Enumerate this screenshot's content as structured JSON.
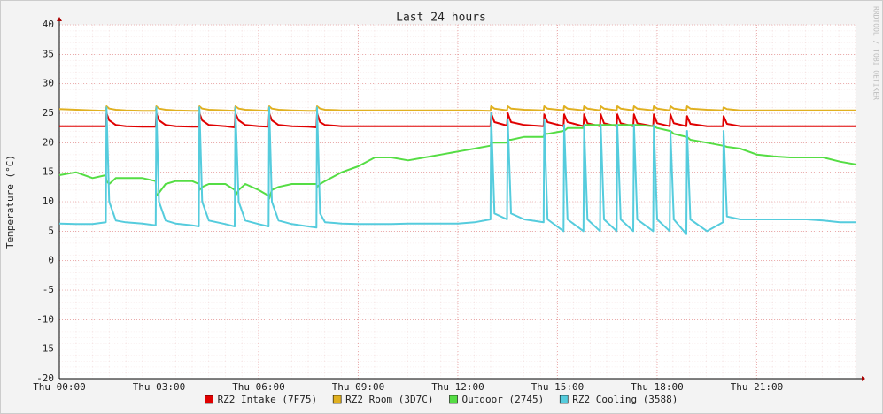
{
  "chart_data": {
    "type": "line",
    "title": "Last 24 hours",
    "y_label": "Temperature (°C)",
    "watermark": "RRDTOOL / TOBI OETIKER",
    "x": [
      0,
      0.5,
      1,
      1.4,
      1.42,
      1.5,
      1.7,
      2,
      2.5,
      2.9,
      2.92,
      3.0,
      3.2,
      3.5,
      4,
      4.2,
      4.22,
      4.3,
      4.5,
      5,
      5.28,
      5.3,
      5.4,
      5.6,
      6,
      6.3,
      6.32,
      6.4,
      6.6,
      7,
      7.5,
      7.74,
      7.76,
      7.85,
      8,
      8.5,
      9,
      9.5,
      10,
      10.5,
      11,
      11.5,
      12,
      12.5,
      12.98,
      13.0,
      13.1,
      13.48,
      13.5,
      13.6,
      14,
      14.58,
      14.6,
      14.7,
      15.18,
      15.2,
      15.3,
      15.78,
      15.8,
      15.9,
      16.28,
      16.3,
      16.4,
      16.78,
      16.8,
      16.9,
      17.28,
      17.3,
      17.4,
      17.88,
      17.9,
      18.0,
      18.38,
      18.4,
      18.5,
      18.88,
      18.9,
      19.0,
      19.5,
      19.98,
      20.0,
      20.1,
      20.5,
      21,
      21.5,
      22,
      22.5,
      23,
      23.5,
      24
    ],
    "series": [
      {
        "name": "RZ2 Intake (7F75)",
        "color": "#e00000",
        "values": [
          22.8,
          22.8,
          22.8,
          22.8,
          25,
          23.8,
          23,
          22.8,
          22.7,
          22.7,
          25,
          23.8,
          23,
          22.8,
          22.7,
          22.7,
          25,
          23.8,
          23,
          22.8,
          22.6,
          25,
          23.8,
          23,
          22.8,
          22.7,
          25,
          23.8,
          23,
          22.8,
          22.7,
          22.6,
          25,
          23.5,
          23,
          22.8,
          22.8,
          22.8,
          22.8,
          22.8,
          22.8,
          22.8,
          22.8,
          22.8,
          22.8,
          25,
          23.5,
          22.9,
          25,
          23.5,
          23,
          22.8,
          24.8,
          23.5,
          22.8,
          24.8,
          23.5,
          22.8,
          24.8,
          23.3,
          22.8,
          24.8,
          23.3,
          22.8,
          24.8,
          23.3,
          22.8,
          24.8,
          23.3,
          22.8,
          24.8,
          23.3,
          22.8,
          24.8,
          23.3,
          22.8,
          24.5,
          23.2,
          22.8,
          22.8,
          24.5,
          23.2,
          22.8,
          22.8,
          22.8,
          22.8,
          22.8,
          22.8,
          22.8,
          22.8
        ]
      },
      {
        "name": "RZ2 Room (3D7C)",
        "color": "#e0b020",
        "values": [
          25.7,
          25.6,
          25.5,
          25.4,
          26.2,
          25.8,
          25.6,
          25.5,
          25.4,
          25.4,
          26.2,
          25.8,
          25.6,
          25.5,
          25.4,
          25.4,
          26.2,
          25.8,
          25.6,
          25.5,
          25.4,
          26.2,
          25.8,
          25.6,
          25.5,
          25.4,
          26.2,
          25.8,
          25.6,
          25.5,
          25.4,
          25.4,
          26.2,
          25.8,
          25.6,
          25.5,
          25.5,
          25.5,
          25.5,
          25.5,
          25.5,
          25.5,
          25.5,
          25.5,
          25.4,
          26.2,
          25.8,
          25.5,
          26.2,
          25.8,
          25.6,
          25.5,
          26.2,
          25.8,
          25.5,
          26.2,
          25.8,
          25.5,
          26.2,
          25.8,
          25.5,
          26.2,
          25.8,
          25.5,
          26.2,
          25.8,
          25.5,
          26.2,
          25.8,
          25.5,
          26.2,
          25.8,
          25.5,
          26.2,
          25.8,
          25.5,
          26.2,
          25.8,
          25.6,
          25.5,
          26,
          25.7,
          25.5,
          25.5,
          25.5,
          25.5,
          25.5,
          25.5,
          25.5,
          25.5
        ]
      },
      {
        "name": "Outdoor (2745)",
        "color": "#55dd44",
        "values": [
          14.5,
          15,
          14,
          14.5,
          13.5,
          13,
          14,
          14,
          14,
          13.5,
          11,
          11.5,
          13,
          13.5,
          13.5,
          13,
          12,
          12.5,
          13,
          13,
          12,
          11,
          12,
          13,
          12,
          11,
          10.5,
          12,
          12.5,
          13,
          13,
          13,
          12.5,
          13,
          13.5,
          15,
          16,
          17.5,
          17.5,
          17,
          17.5,
          18,
          18.5,
          19,
          19.5,
          20,
          20,
          20,
          20.5,
          20.5,
          21,
          21,
          21.5,
          21.5,
          22,
          22,
          22.5,
          22.5,
          23,
          23,
          23,
          23,
          23,
          23,
          23,
          23,
          23,
          23,
          23,
          22.8,
          22.8,
          22.5,
          22,
          22,
          21.5,
          21,
          21,
          20.5,
          20,
          19.5,
          19.5,
          19.3,
          19,
          18,
          17.7,
          17.5,
          17.5,
          17.5,
          16.8,
          16.3
        ]
      },
      {
        "name": "RZ2 Cooling (3588)",
        "color": "#55ccdd",
        "values": [
          6.3,
          6.2,
          6.2,
          6.5,
          26,
          10,
          6.8,
          6.5,
          6.3,
          6,
          26,
          10,
          6.8,
          6.3,
          6,
          5.8,
          26,
          10,
          6.8,
          6.2,
          5.8,
          26,
          10,
          6.8,
          6.2,
          5.8,
          26,
          10,
          6.8,
          6.2,
          5.8,
          5.6,
          26,
          8,
          6.5,
          6.3,
          6.2,
          6.2,
          6.2,
          6.3,
          6.3,
          6.3,
          6.3,
          6.5,
          7,
          25,
          8,
          7,
          24,
          8,
          7,
          6.5,
          24,
          7,
          5,
          23,
          7,
          5,
          23,
          7,
          5,
          23,
          7,
          5,
          23,
          7,
          5,
          23,
          7,
          5,
          23,
          7,
          5,
          22,
          7,
          4.5,
          22,
          7,
          5,
          6.5,
          22,
          7.5,
          7,
          7,
          7,
          7,
          7,
          6.8,
          6.5,
          6.5
        ]
      }
    ],
    "xlim": [
      0,
      24
    ],
    "xticks": [
      {
        "value": 0,
        "label": "Thu 00:00"
      },
      {
        "value": 3,
        "label": "Thu 03:00"
      },
      {
        "value": 6,
        "label": "Thu 06:00"
      },
      {
        "value": 9,
        "label": "Thu 09:00"
      },
      {
        "value": 12,
        "label": "Thu 12:00"
      },
      {
        "value": 15,
        "label": "Thu 15:00"
      },
      {
        "value": 18,
        "label": "Thu 18:00"
      },
      {
        "value": 21,
        "label": "Thu 21:00"
      }
    ],
    "ylim": [
      -20,
      40
    ],
    "yticks": [
      -20,
      -15,
      -10,
      -5,
      0,
      5,
      10,
      15,
      20,
      25,
      30,
      35,
      40
    ],
    "grid": true
  }
}
